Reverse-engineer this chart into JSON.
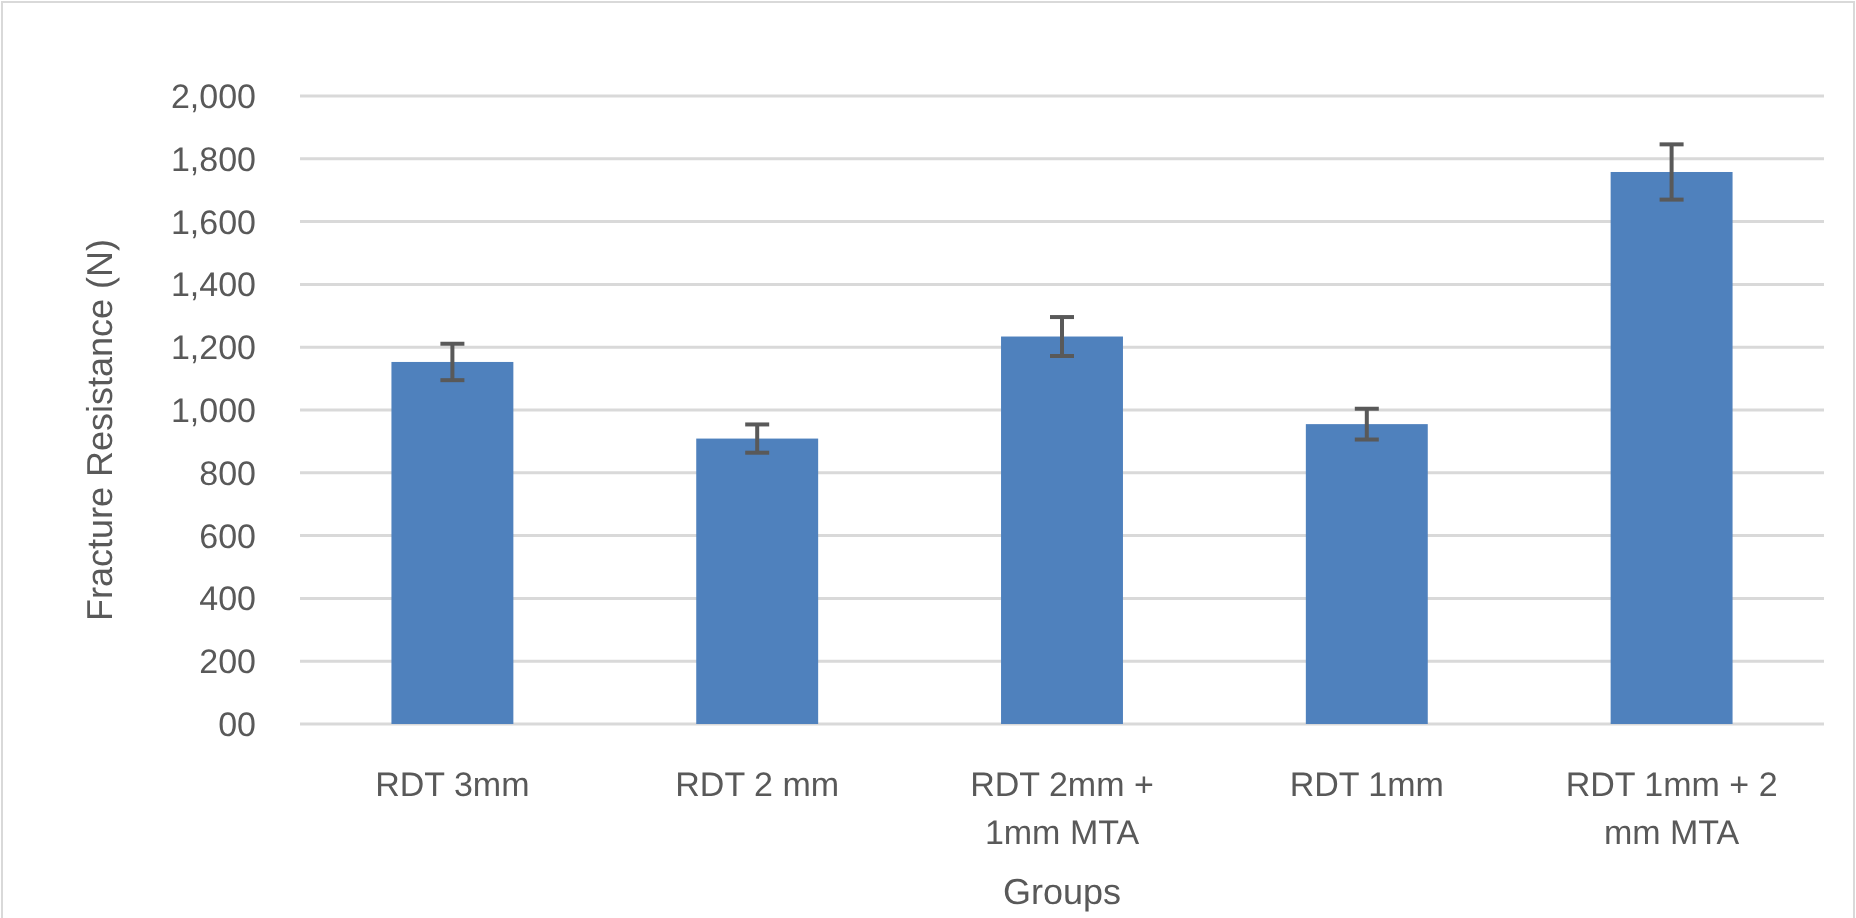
{
  "chart_data": {
    "type": "bar",
    "xlabel": "Groups",
    "ylabel": "Fracture Resistance (N)",
    "categories": [
      "RDT 3mm",
      "RDT 2 mm",
      "RDT 2mm + 1mm MTA",
      "RDT 1mm",
      "RDT 1mm + 2 mm MTA"
    ],
    "values": [
      1153,
      909,
      1234,
      955,
      1758
    ],
    "errors": [
      58,
      45,
      62,
      49,
      88
    ],
    "color": "#4f81bd",
    "ylim": [
      0,
      2000
    ],
    "yticks": [
      {
        "value": 0,
        "label": "00"
      },
      200,
      400,
      600,
      800,
      {
        "value": 1000,
        "label": "1,000"
      },
      {
        "value": 1200,
        "label": "1,200"
      },
      {
        "value": 1400,
        "label": "1,400"
      },
      {
        "value": 1600,
        "label": "1,600"
      },
      {
        "value": 1800,
        "label": "1,800"
      },
      {
        "value": 2000,
        "label": "2,000"
      }
    ],
    "grid": "y"
  }
}
